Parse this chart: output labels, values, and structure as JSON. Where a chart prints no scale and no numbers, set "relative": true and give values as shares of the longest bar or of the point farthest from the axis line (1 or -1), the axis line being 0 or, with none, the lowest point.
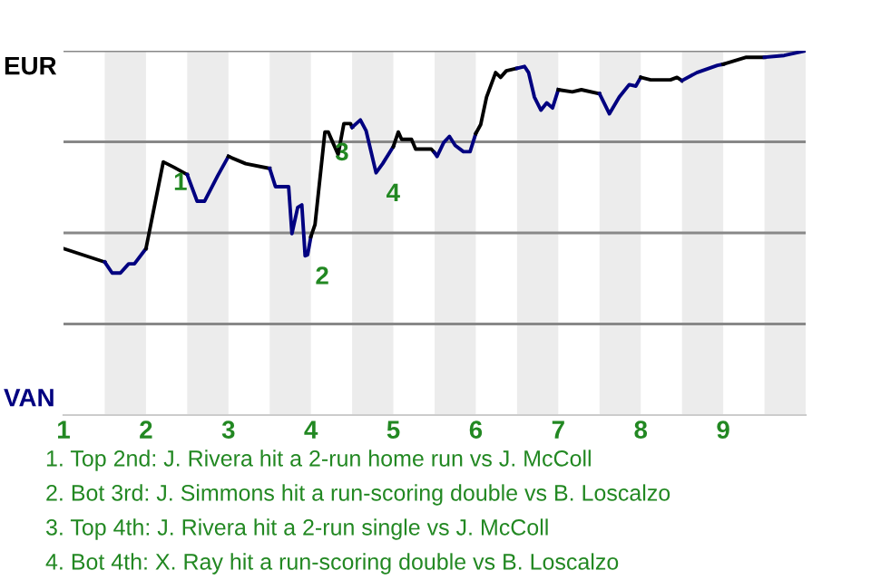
{
  "chart_data": {
    "type": "line",
    "relative": true,
    "grid": "y",
    "series": [
      {
        "name": "EUR",
        "color": "#000000",
        "x": [
          1.0,
          1.5
        ],
        "values": [
          0.457,
          0.42
        ]
      },
      {
        "name": "VAN",
        "color": "#000080",
        "x": [
          1.5,
          1.59,
          1.69,
          1.79,
          1.86,
          2.0
        ],
        "values": [
          0.42,
          0.39,
          0.39,
          0.415,
          0.415,
          0.457
        ]
      },
      {
        "color": "#000000",
        "x": [
          2.0,
          2.21,
          2.34,
          2.5
        ],
        "values": [
          0.457,
          0.695,
          0.68,
          0.66
        ]
      },
      {
        "color": "#000080",
        "x": [
          2.5,
          2.62,
          2.71,
          2.87,
          3.0
        ],
        "values": [
          0.66,
          0.587,
          0.587,
          0.657,
          0.71
        ]
      },
      {
        "color": "#000000",
        "x": [
          3.0,
          3.21,
          3.5
        ],
        "values": [
          0.71,
          0.69,
          0.677
        ]
      },
      {
        "color": "#000080",
        "x": [
          3.5,
          3.57,
          3.73,
          3.77,
          3.84,
          3.89,
          3.93,
          3.96,
          4.0
        ],
        "values": [
          0.677,
          0.627,
          0.627,
          0.498,
          0.57,
          0.577,
          0.437,
          0.44,
          0.49
        ]
      },
      {
        "color": "#000000",
        "x": [
          4.0,
          4.05,
          4.17,
          4.21,
          4.33,
          4.4,
          4.48,
          4.5
        ],
        "values": [
          0.49,
          0.523,
          0.777,
          0.777,
          0.715,
          0.8,
          0.8,
          0.79
        ]
      },
      {
        "color": "#000080",
        "x": [
          4.5,
          4.6,
          4.67,
          4.79,
          4.87,
          5.0
        ],
        "values": [
          0.79,
          0.81,
          0.78,
          0.665,
          0.69,
          0.737
        ]
      },
      {
        "color": "#000000",
        "x": [
          5.0,
          5.06,
          5.1,
          5.22,
          5.27,
          5.46,
          5.5
        ],
        "values": [
          0.737,
          0.777,
          0.757,
          0.757,
          0.73,
          0.73,
          0.72
        ]
      },
      {
        "color": "#000080",
        "x": [
          5.5,
          5.53,
          5.61,
          5.68,
          5.75,
          5.85,
          5.93,
          6.0
        ],
        "values": [
          0.72,
          0.71,
          0.748,
          0.765,
          0.74,
          0.723,
          0.723,
          0.773
        ]
      },
      {
        "color": "#000000",
        "x": [
          6.0,
          6.06,
          6.13,
          6.24,
          6.3,
          6.37,
          6.5
        ],
        "values": [
          0.773,
          0.798,
          0.873,
          0.94,
          0.927,
          0.945,
          0.952
        ]
      },
      {
        "color": "#000080",
        "x": [
          6.5,
          6.59,
          6.64,
          6.71,
          6.79,
          6.86,
          6.93,
          7.0
        ],
        "values": [
          0.952,
          0.957,
          0.94,
          0.873,
          0.837,
          0.857,
          0.843,
          0.893
        ]
      },
      {
        "color": "#000000",
        "x": [
          7.0,
          7.17,
          7.28,
          7.5
        ],
        "values": [
          0.893,
          0.887,
          0.893,
          0.882
        ]
      },
      {
        "color": "#000080",
        "x": [
          7.5,
          7.62,
          7.74,
          7.86,
          7.94,
          8.0
        ],
        "values": [
          0.882,
          0.827,
          0.873,
          0.907,
          0.903,
          0.927
        ]
      },
      {
        "color": "#000000",
        "x": [
          8.0,
          8.12,
          8.36,
          8.44,
          8.5
        ],
        "values": [
          0.927,
          0.92,
          0.92,
          0.927,
          0.918
        ]
      },
      {
        "color": "#000080",
        "x": [
          8.5,
          8.68,
          8.93,
          9.0
        ],
        "values": [
          0.918,
          0.94,
          0.96,
          0.963
        ]
      },
      {
        "color": "#000000",
        "x": [
          9.0,
          9.28,
          9.5
        ],
        "values": [
          0.963,
          0.982,
          0.982
        ]
      },
      {
        "color": "#000080",
        "x": [
          9.5,
          9.74,
          10.0
        ],
        "values": [
          0.982,
          0.987,
          1.0
        ]
      }
    ],
    "xlim": [
      1,
      10
    ],
    "xticks": [
      1,
      2,
      3,
      4,
      5,
      6,
      7,
      8,
      9
    ],
    "bands": [
      {
        "axis": "x",
        "from": 1.5,
        "to": 2,
        "color": "#ececec"
      },
      {
        "axis": "x",
        "from": 2.5,
        "to": 3,
        "color": "#ececec"
      },
      {
        "axis": "x",
        "from": 3.5,
        "to": 4,
        "color": "#ececec"
      },
      {
        "axis": "x",
        "from": 4.5,
        "to": 5,
        "color": "#ececec"
      },
      {
        "axis": "x",
        "from": 5.5,
        "to": 6,
        "color": "#ececec"
      },
      {
        "axis": "x",
        "from": 6.5,
        "to": 7,
        "color": "#ececec"
      },
      {
        "axis": "x",
        "from": 7.5,
        "to": 8,
        "color": "#ececec"
      },
      {
        "axis": "x",
        "from": 8.5,
        "to": 9,
        "color": "#ececec"
      },
      {
        "axis": "x",
        "from": 9.5,
        "to": 10,
        "color": "#ececec"
      }
    ],
    "annotations": [
      {
        "text": "1",
        "x": 2.21,
        "y": 0.695
      },
      {
        "text": "2",
        "x": 3.93,
        "y": 0.437
      },
      {
        "text": "3",
        "x": 4.17,
        "y": 0.777
      },
      {
        "text": "4",
        "x": 4.79,
        "y": 0.665
      },
      "1. Top 2nd: J. Rivera hit a 2-run home run vs J. McColl",
      "2. Bot 3rd: J. Simmons hit a run-scoring double vs B. Loscalzo",
      "3. Top 4th: J. Rivera hit a 2-run single vs J. McColl",
      "4. Bot 4th: X. Ray hit a run-scoring double vs B. Loscalzo"
    ],
    "marker": "none",
    "line_style": "solid",
    "legend": false
  }
}
